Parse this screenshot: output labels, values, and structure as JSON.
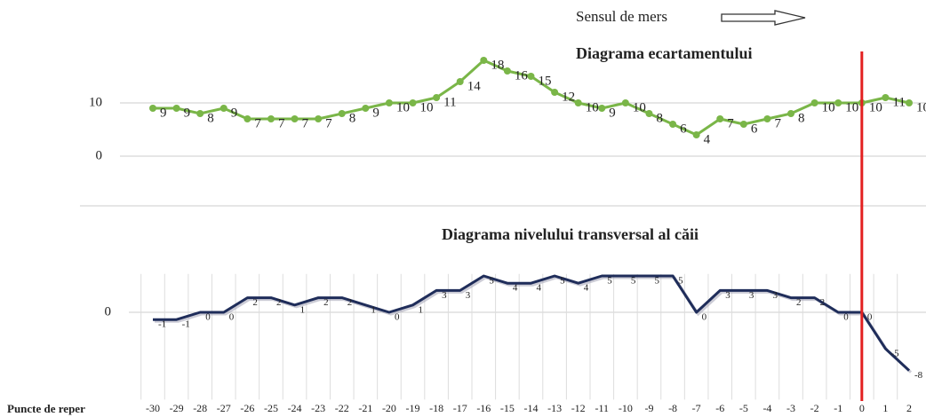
{
  "header": {
    "direction_label": "Sensul de mers"
  },
  "marker_x": 0,
  "chart_data": [
    {
      "type": "line",
      "title": "Diagrama ecartamentului",
      "color": "#7ab648",
      "values": [
        9,
        9,
        8,
        9,
        7,
        7,
        7,
        7,
        8,
        9,
        10,
        10,
        11,
        14,
        18,
        16,
        15,
        12,
        10,
        9,
        10,
        8,
        6,
        4,
        7,
        6,
        7,
        8,
        10,
        10,
        10,
        11,
        10
      ],
      "ylim": [
        0,
        20
      ],
      "yticks": [
        0,
        10
      ],
      "grid": true
    },
    {
      "type": "line",
      "title": "Diagrama nivelului transversal al căii",
      "color": "#1f2d5a",
      "x_label": "Puncte de reper",
      "categories": [
        -30,
        -29,
        -28,
        -27,
        -26,
        -25,
        -24,
        -23,
        -22,
        -21,
        -20,
        -19,
        -18,
        -17,
        -16,
        -15,
        -14,
        -13,
        -12,
        -11,
        -10,
        -9,
        -8,
        -7,
        -6,
        -5,
        -4,
        -3,
        -2,
        -1,
        0,
        1,
        2
      ],
      "values": [
        -1,
        -1,
        0,
        0,
        2,
        2,
        1,
        2,
        2,
        1,
        0,
        1,
        3,
        3,
        5,
        4,
        4,
        5,
        4,
        5,
        5,
        5,
        5,
        0,
        3,
        3,
        3,
        2,
        2,
        0,
        0,
        -5,
        -8
      ],
      "ylim": [
        -12,
        6
      ],
      "yticks": [
        0
      ],
      "grid": true
    }
  ]
}
